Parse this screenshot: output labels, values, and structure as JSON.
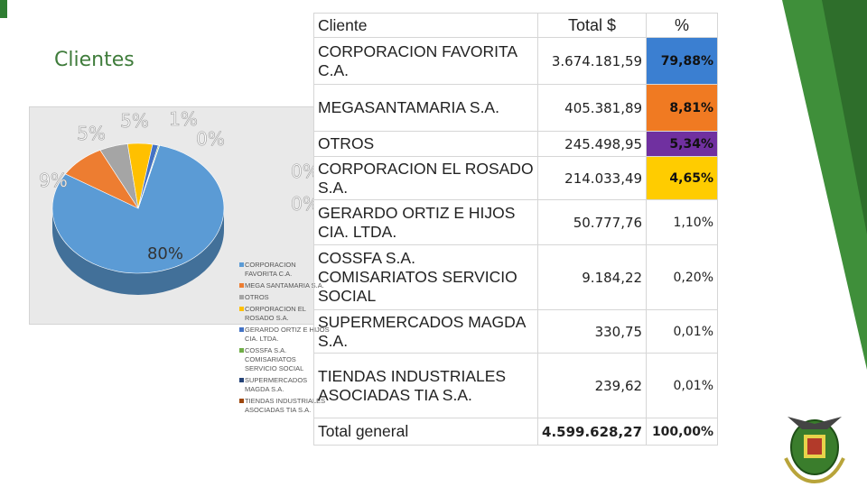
{
  "title": "Clientes",
  "colors": {
    "accent_green": "#2e7d32",
    "highlight_blue": "#3b7fd1",
    "highlight_orange": "#f07a22",
    "highlight_purple": "#7030a0",
    "highlight_yellow": "#ffcc00"
  },
  "table": {
    "headers": {
      "client": "Cliente",
      "total": "Total $",
      "pct": "%"
    },
    "rows": [
      {
        "client": "CORPORACION FAVORITA C.A.",
        "total": "3.674.181,59",
        "pct": "79,88%",
        "pct_color": "#3b7fd1"
      },
      {
        "client": "MEGASANTAMARIA S.A.",
        "total": "405.381,89",
        "pct": "8,81%",
        "pct_color": "#f07a22"
      },
      {
        "client": "OTROS",
        "total": "245.498,95",
        "pct": "5,34%",
        "pct_color": "#7030a0"
      },
      {
        "client": "CORPORACION EL ROSADO S.A.",
        "total": "214.033,49",
        "pct": "4,65%",
        "pct_color": "#ffcc00"
      },
      {
        "client": "GERARDO ORTIZ E HIJOS CIA. LTDA.",
        "total": "50.777,76",
        "pct": "1,10%",
        "pct_color": ""
      },
      {
        "client": "COSSFA S.A. COMISARIATOS SERVICIO SOCIAL",
        "total": "9.184,22",
        "pct": "0,20%",
        "pct_color": ""
      },
      {
        "client": "SUPERMERCADOS MAGDA S.A.",
        "total": "330,75",
        "pct": "0,01%",
        "pct_color": ""
      },
      {
        "client": "TIENDAS INDUSTRIALES ASOCIADAS TIA S.A.",
        "total": "239,62",
        "pct": "0,01%",
        "pct_color": ""
      }
    ],
    "total_row": {
      "client": "Total general",
      "total": "4.599.628,27",
      "pct": "100,00%"
    }
  },
  "chart_data": {
    "type": "pie",
    "title": "",
    "categories": [
      "CORPORACION FAVORITA C.A.",
      "MEGA SANTAMARIA S.A.",
      "OTROS",
      "CORPORACION EL ROSADO S.A.",
      "GERARDO ORTIZ E HIJOS CIA. LTDA.",
      "COSSFA S.A. COMISARIATOS SERVICIO SOCIAL",
      "SUPERMERCADOS MAGDA S.A.",
      "TIENDAS INDUSTRIALES ASOCIADAS TIA S.A."
    ],
    "values": [
      79.88,
      8.81,
      5.34,
      4.65,
      1.1,
      0.2,
      0.01,
      0.01
    ],
    "data_labels": [
      "80%",
      "9%",
      "5%",
      "5%",
      "1%",
      "0%",
      "0%",
      "0%"
    ],
    "colors": [
      "#5b9bd5",
      "#ed7d31",
      "#a5a5a5",
      "#ffc000",
      "#4472c4",
      "#70ad47",
      "#264478",
      "#9e480e"
    ],
    "legend_position": "right",
    "style": "3d"
  }
}
